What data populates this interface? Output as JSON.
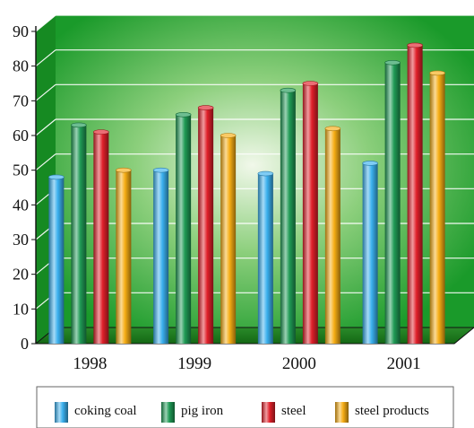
{
  "chart_data": {
    "type": "bar",
    "categories": [
      "1998",
      "1999",
      "2000",
      "2001"
    ],
    "series": [
      {
        "name": "coking coal",
        "values": [
          48,
          50,
          49,
          52
        ]
      },
      {
        "name": "pig iron",
        "values": [
          63,
          66,
          73,
          81
        ]
      },
      {
        "name": "steel",
        "values": [
          61,
          68,
          75,
          86
        ]
      },
      {
        "name": "steel products",
        "values": [
          50,
          60,
          62,
          78
        ]
      }
    ],
    "yticks": [
      "0",
      "10",
      "20",
      "30",
      "40",
      "50",
      "60",
      "70",
      "80",
      "90"
    ],
    "ylim": [
      0,
      90
    ],
    "grid": true,
    "legend_position": "bottom",
    "colors": {
      "coking coal": "#3ab0ee",
      "pig iron": "#1f9a55",
      "steel": "#e0202a",
      "steel products": "#f6ad14",
      "background_outer": "#1fa12e",
      "background_inner": "#e8f3de"
    }
  }
}
